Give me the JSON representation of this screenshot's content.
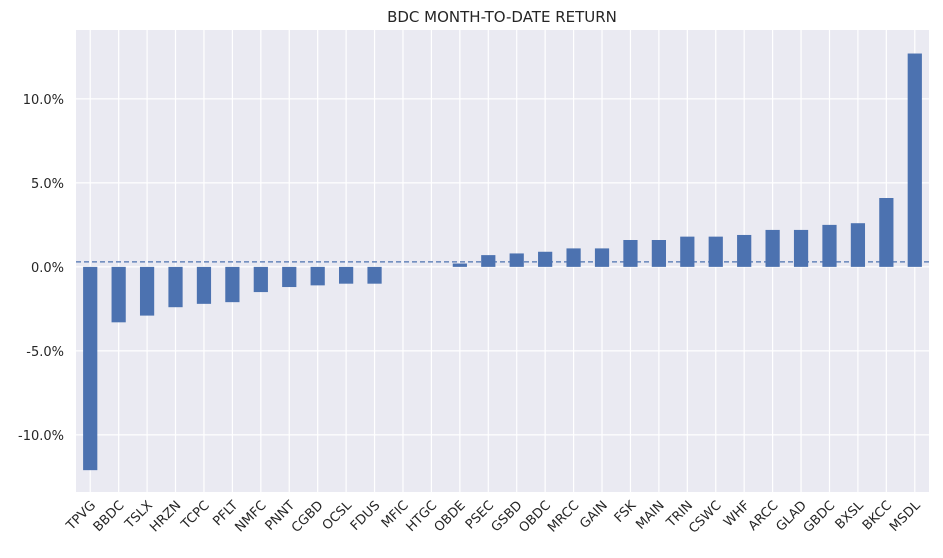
{
  "chart_data": {
    "type": "bar",
    "title": "BDC MONTH-TO-DATE RETURN",
    "xlabel": "",
    "ylabel": "",
    "categories": [
      "TPVG",
      "BBDC",
      "TSLX",
      "HRZN",
      "TCPC",
      "PFLT",
      "NMFC",
      "PNNT",
      "CGBD",
      "OCSL",
      "FDUS",
      "MFIC",
      "HTGC",
      "OBDE",
      "PSEC",
      "GSBD",
      "OBDC",
      "MRCC",
      "GAIN",
      "FSK",
      "MAIN",
      "TRIN",
      "CSWC",
      "WHF",
      "ARCC",
      "GLAD",
      "GBDC",
      "BXSL",
      "BKCC",
      "MSDL"
    ],
    "values": [
      -12.1,
      -3.3,
      -2.9,
      -2.4,
      -2.2,
      -2.1,
      -1.5,
      -1.2,
      -1.1,
      -1.0,
      -1.0,
      0.0,
      0.0,
      0.2,
      0.7,
      0.8,
      0.9,
      1.1,
      1.1,
      1.6,
      1.6,
      1.8,
      1.8,
      1.9,
      2.2,
      2.2,
      2.5,
      2.6,
      4.1,
      12.7
    ],
    "ylim": [
      -13.4,
      14.1
    ],
    "yticks": [
      -10,
      -5,
      0,
      5,
      10
    ],
    "ytick_labels": [
      "-10.0%",
      "-5.0%",
      "0.0%",
      "5.0%",
      "10.0%"
    ],
    "reference_line": 0.3,
    "grid": true,
    "colors": {
      "bar": "#4c72b0",
      "background": "#eaeaf2",
      "grid": "#ffffff",
      "reference_line": "#4c72b0",
      "text": "#262626"
    }
  }
}
